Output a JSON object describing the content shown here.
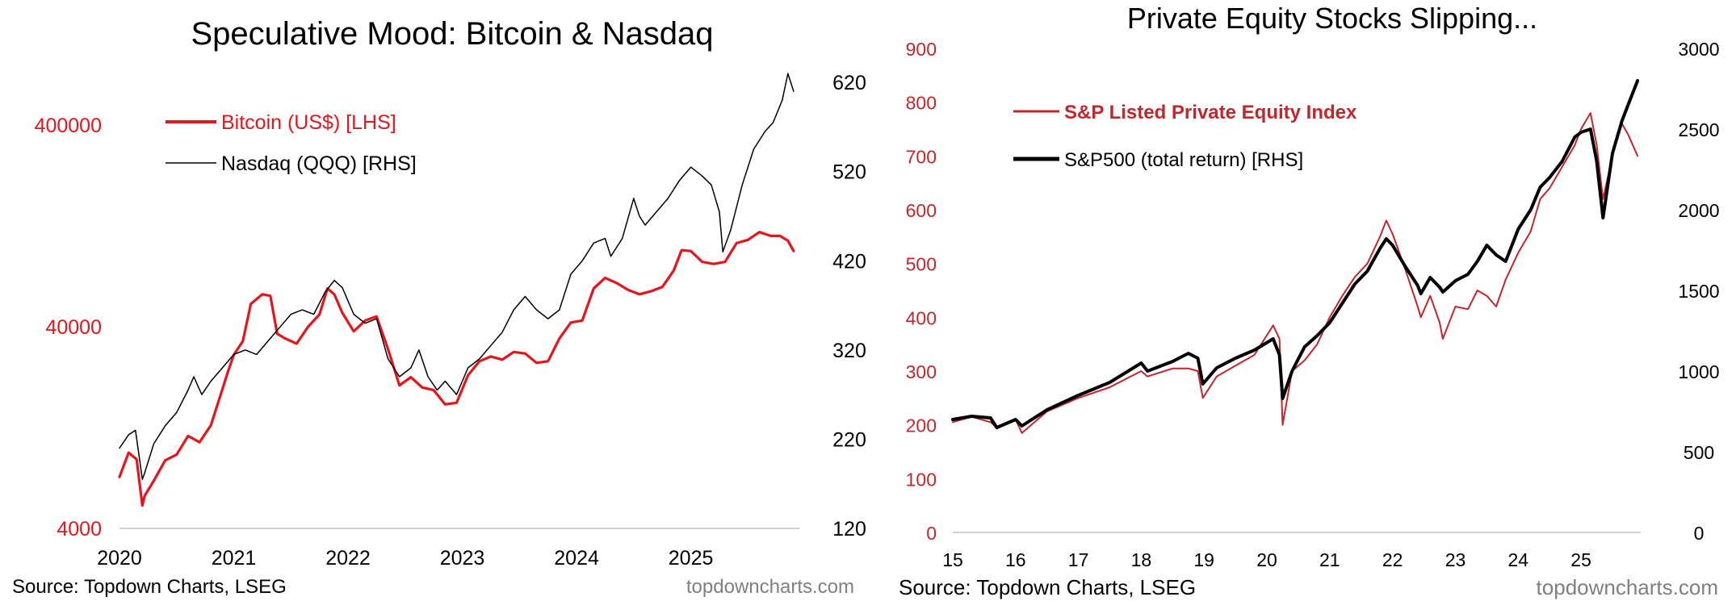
{
  "charts": [
    {
      "type": "line",
      "title": "Speculative Mood: Bitcoin & Nasdaq",
      "source": "Source: Topdown Charts, LSEG",
      "watermark": "topdowncharts.com",
      "x_ticks": [
        "2020",
        "2021",
        "2022",
        "2023",
        "2024",
        "2025"
      ],
      "x_tick_values": [
        2020,
        2021,
        2022,
        2023,
        2024,
        2025
      ],
      "xlim": [
        2020,
        2025.95
      ],
      "left_axis": {
        "scale": "log",
        "ylim": [
          4000,
          800000
        ],
        "ticks": [
          4000,
          40000,
          400000
        ],
        "tick_labels": [
          "4000",
          "40000",
          "400000"
        ],
        "color": "#e8141b"
      },
      "right_axis": {
        "scale": "linear",
        "ylim": [
          120,
          640
        ],
        "ticks": [
          120,
          220,
          320,
          420,
          520,
          620
        ],
        "tick_labels": [
          "120",
          "220",
          "320",
          "420",
          "520",
          "620"
        ],
        "color": "#000000"
      },
      "legend_position": "top-left",
      "series": [
        {
          "name": "Bitcoin (US$) [LHS]",
          "axis": "left",
          "color": "#e8141b",
          "width": 3.2,
          "x": [
            2020.0,
            2020.08,
            2020.15,
            2020.2,
            2020.22,
            2020.3,
            2020.4,
            2020.5,
            2020.6,
            2020.7,
            2020.8,
            2020.88,
            2020.95,
            2021.0,
            2021.08,
            2021.15,
            2021.25,
            2021.32,
            2021.38,
            2021.45,
            2021.55,
            2021.65,
            2021.75,
            2021.82,
            2021.88,
            2021.95,
            2022.05,
            2022.15,
            2022.25,
            2022.35,
            2022.45,
            2022.55,
            2022.65,
            2022.75,
            2022.85,
            2022.95,
            2023.05,
            2023.15,
            2023.25,
            2023.35,
            2023.45,
            2023.55,
            2023.65,
            2023.75,
            2023.85,
            2023.95,
            2024.05,
            2024.15,
            2024.25,
            2024.35,
            2024.45,
            2024.55,
            2024.65,
            2024.75,
            2024.85,
            2024.92,
            2025.0,
            2025.1,
            2025.2,
            2025.3,
            2025.4,
            2025.5,
            2025.6,
            2025.7,
            2025.78,
            2025.85,
            2025.9
          ],
          "values": [
            7200,
            9500,
            8800,
            5200,
            5800,
            6900,
            8700,
            9300,
            11500,
            10700,
            13000,
            18000,
            24000,
            29000,
            34000,
            52000,
            58000,
            57000,
            37000,
            35000,
            33000,
            40000,
            46000,
            62000,
            58000,
            47000,
            38000,
            43000,
            45000,
            31000,
            20500,
            22500,
            20000,
            19400,
            16500,
            16800,
            23000,
            27000,
            28500,
            27500,
            30000,
            29500,
            26500,
            27000,
            35000,
            42000,
            43000,
            62000,
            70000,
            66000,
            61000,
            58000,
            60000,
            63000,
            76000,
            96000,
            95000,
            84000,
            82000,
            84000,
            104000,
            108000,
            118000,
            113000,
            113000,
            107000,
            95000
          ]
        },
        {
          "name": "Nasdaq (QQQ) [RHS]",
          "axis": "right",
          "color": "#000000",
          "width": 1.5,
          "x": [
            2020.0,
            2020.08,
            2020.14,
            2020.2,
            2020.22,
            2020.3,
            2020.4,
            2020.5,
            2020.6,
            2020.65,
            2020.72,
            2020.8,
            2020.9,
            2021.0,
            2021.1,
            2021.2,
            2021.3,
            2021.4,
            2021.5,
            2021.6,
            2021.7,
            2021.8,
            2021.88,
            2021.95,
            2022.05,
            2022.15,
            2022.25,
            2022.35,
            2022.45,
            2022.55,
            2022.62,
            2022.7,
            2022.78,
            2022.85,
            2022.95,
            2023.05,
            2023.15,
            2023.25,
            2023.35,
            2023.45,
            2023.55,
            2023.65,
            2023.75,
            2023.85,
            2023.95,
            2024.05,
            2024.15,
            2024.25,
            2024.3,
            2024.4,
            2024.5,
            2024.55,
            2024.6,
            2024.7,
            2024.8,
            2024.9,
            2025.0,
            2025.1,
            2025.18,
            2025.25,
            2025.28,
            2025.35,
            2025.45,
            2025.55,
            2025.65,
            2025.72,
            2025.8,
            2025.85,
            2025.9
          ],
          "values": [
            210,
            225,
            230,
            175,
            182,
            215,
            235,
            250,
            275,
            290,
            270,
            285,
            300,
            315,
            320,
            315,
            330,
            345,
            360,
            365,
            360,
            385,
            398,
            390,
            360,
            350,
            355,
            310,
            290,
            300,
            320,
            290,
            275,
            285,
            270,
            300,
            310,
            325,
            340,
            365,
            380,
            365,
            355,
            365,
            405,
            420,
            440,
            445,
            425,
            445,
            490,
            470,
            460,
            475,
            490,
            510,
            525,
            515,
            505,
            475,
            430,
            455,
            505,
            545,
            565,
            575,
            600,
            630,
            610
          ]
        }
      ]
    },
    {
      "type": "line",
      "title": "Private Equity Stocks Slipping...",
      "source": "Source: Topdown Charts, LSEG",
      "watermark": "topdowncharts.com",
      "x_ticks": [
        "15",
        "16",
        "17",
        "18",
        "19",
        "20",
        "21",
        "22",
        "23",
        "24",
        "25"
      ],
      "x_tick_values": [
        2015,
        2016,
        2017,
        2018,
        2019,
        2020,
        2021,
        2022,
        2023,
        2024,
        2025
      ],
      "xlim": [
        2015,
        2025.95
      ],
      "left_axis": {
        "scale": "linear",
        "ylim": [
          0,
          900
        ],
        "ticks": [
          0,
          100,
          200,
          300,
          400,
          500,
          600,
          700,
          800,
          900
        ],
        "tick_labels": [
          "0",
          "100",
          "200",
          "300",
          "400",
          "500",
          "600",
          "700",
          "800",
          "900"
        ],
        "color": "#c1272d"
      },
      "right_axis": {
        "scale": "linear",
        "ylim": [
          0,
          3000
        ],
        "ticks": [
          0,
          500,
          1000,
          1500,
          2000,
          2500,
          3000
        ],
        "tick_labels": [
          "0",
          "500",
          "1000",
          "1500",
          "2000",
          "2500",
          "3000"
        ],
        "color": "#000000"
      },
      "legend_position": "top-left",
      "series": [
        {
          "name": "S&P Listed Private Equity Index",
          "axis": "left",
          "color": "#c1272d",
          "width": 2,
          "x": [
            2015.0,
            2015.3,
            2015.6,
            2015.7,
            2016.0,
            2016.1,
            2016.5,
            2017.0,
            2017.5,
            2018.0,
            2018.1,
            2018.5,
            2018.75,
            2018.9,
            2018.98,
            2019.2,
            2019.5,
            2019.8,
            2020.1,
            2020.2,
            2020.25,
            2020.4,
            2020.6,
            2020.8,
            2021.0,
            2021.2,
            2021.4,
            2021.6,
            2021.8,
            2021.9,
            2022.0,
            2022.2,
            2022.4,
            2022.45,
            2022.6,
            2022.75,
            2022.8,
            2023.0,
            2023.2,
            2023.35,
            2023.5,
            2023.65,
            2023.8,
            2024.0,
            2024.2,
            2024.35,
            2024.5,
            2024.7,
            2024.9,
            2025.0,
            2025.15,
            2025.25,
            2025.35,
            2025.5,
            2025.65,
            2025.75,
            2025.9
          ],
          "values": [
            205,
            215,
            205,
            195,
            210,
            185,
            225,
            250,
            270,
            300,
            290,
            305,
            305,
            300,
            250,
            290,
            310,
            330,
            385,
            360,
            200,
            300,
            320,
            350,
            400,
            440,
            475,
            500,
            550,
            580,
            555,
            490,
            420,
            400,
            440,
            390,
            360,
            420,
            415,
            450,
            440,
            420,
            470,
            520,
            560,
            620,
            640,
            680,
            720,
            750,
            780,
            720,
            620,
            700,
            760,
            740,
            700
          ]
        },
        {
          "name": "S&P500 (total return) [RHS]",
          "axis": "right",
          "color": "#000000",
          "width": 4,
          "x": [
            2015.0,
            2015.3,
            2015.6,
            2015.7,
            2016.0,
            2016.1,
            2016.5,
            2017.0,
            2017.5,
            2018.0,
            2018.1,
            2018.5,
            2018.75,
            2018.9,
            2018.98,
            2019.2,
            2019.5,
            2019.8,
            2020.1,
            2020.2,
            2020.25,
            2020.4,
            2020.6,
            2020.8,
            2021.0,
            2021.2,
            2021.4,
            2021.6,
            2021.8,
            2021.9,
            2022.0,
            2022.2,
            2022.4,
            2022.45,
            2022.6,
            2022.75,
            2022.8,
            2023.0,
            2023.2,
            2023.35,
            2023.5,
            2023.65,
            2023.8,
            2024.0,
            2024.2,
            2024.35,
            2024.5,
            2024.7,
            2024.9,
            2025.0,
            2025.15,
            2025.25,
            2025.35,
            2025.5,
            2025.65,
            2025.75,
            2025.9
          ],
          "values": [
            700,
            720,
            710,
            650,
            700,
            660,
            760,
            850,
            930,
            1050,
            1000,
            1060,
            1110,
            1080,
            920,
            1020,
            1080,
            1130,
            1200,
            1100,
            830,
            1000,
            1150,
            1220,
            1300,
            1420,
            1540,
            1620,
            1760,
            1820,
            1780,
            1650,
            1530,
            1480,
            1580,
            1520,
            1490,
            1560,
            1600,
            1680,
            1780,
            1720,
            1680,
            1880,
            2000,
            2140,
            2200,
            2300,
            2450,
            2480,
            2500,
            2300,
            1950,
            2350,
            2550,
            2650,
            2800
          ]
        }
      ]
    }
  ]
}
